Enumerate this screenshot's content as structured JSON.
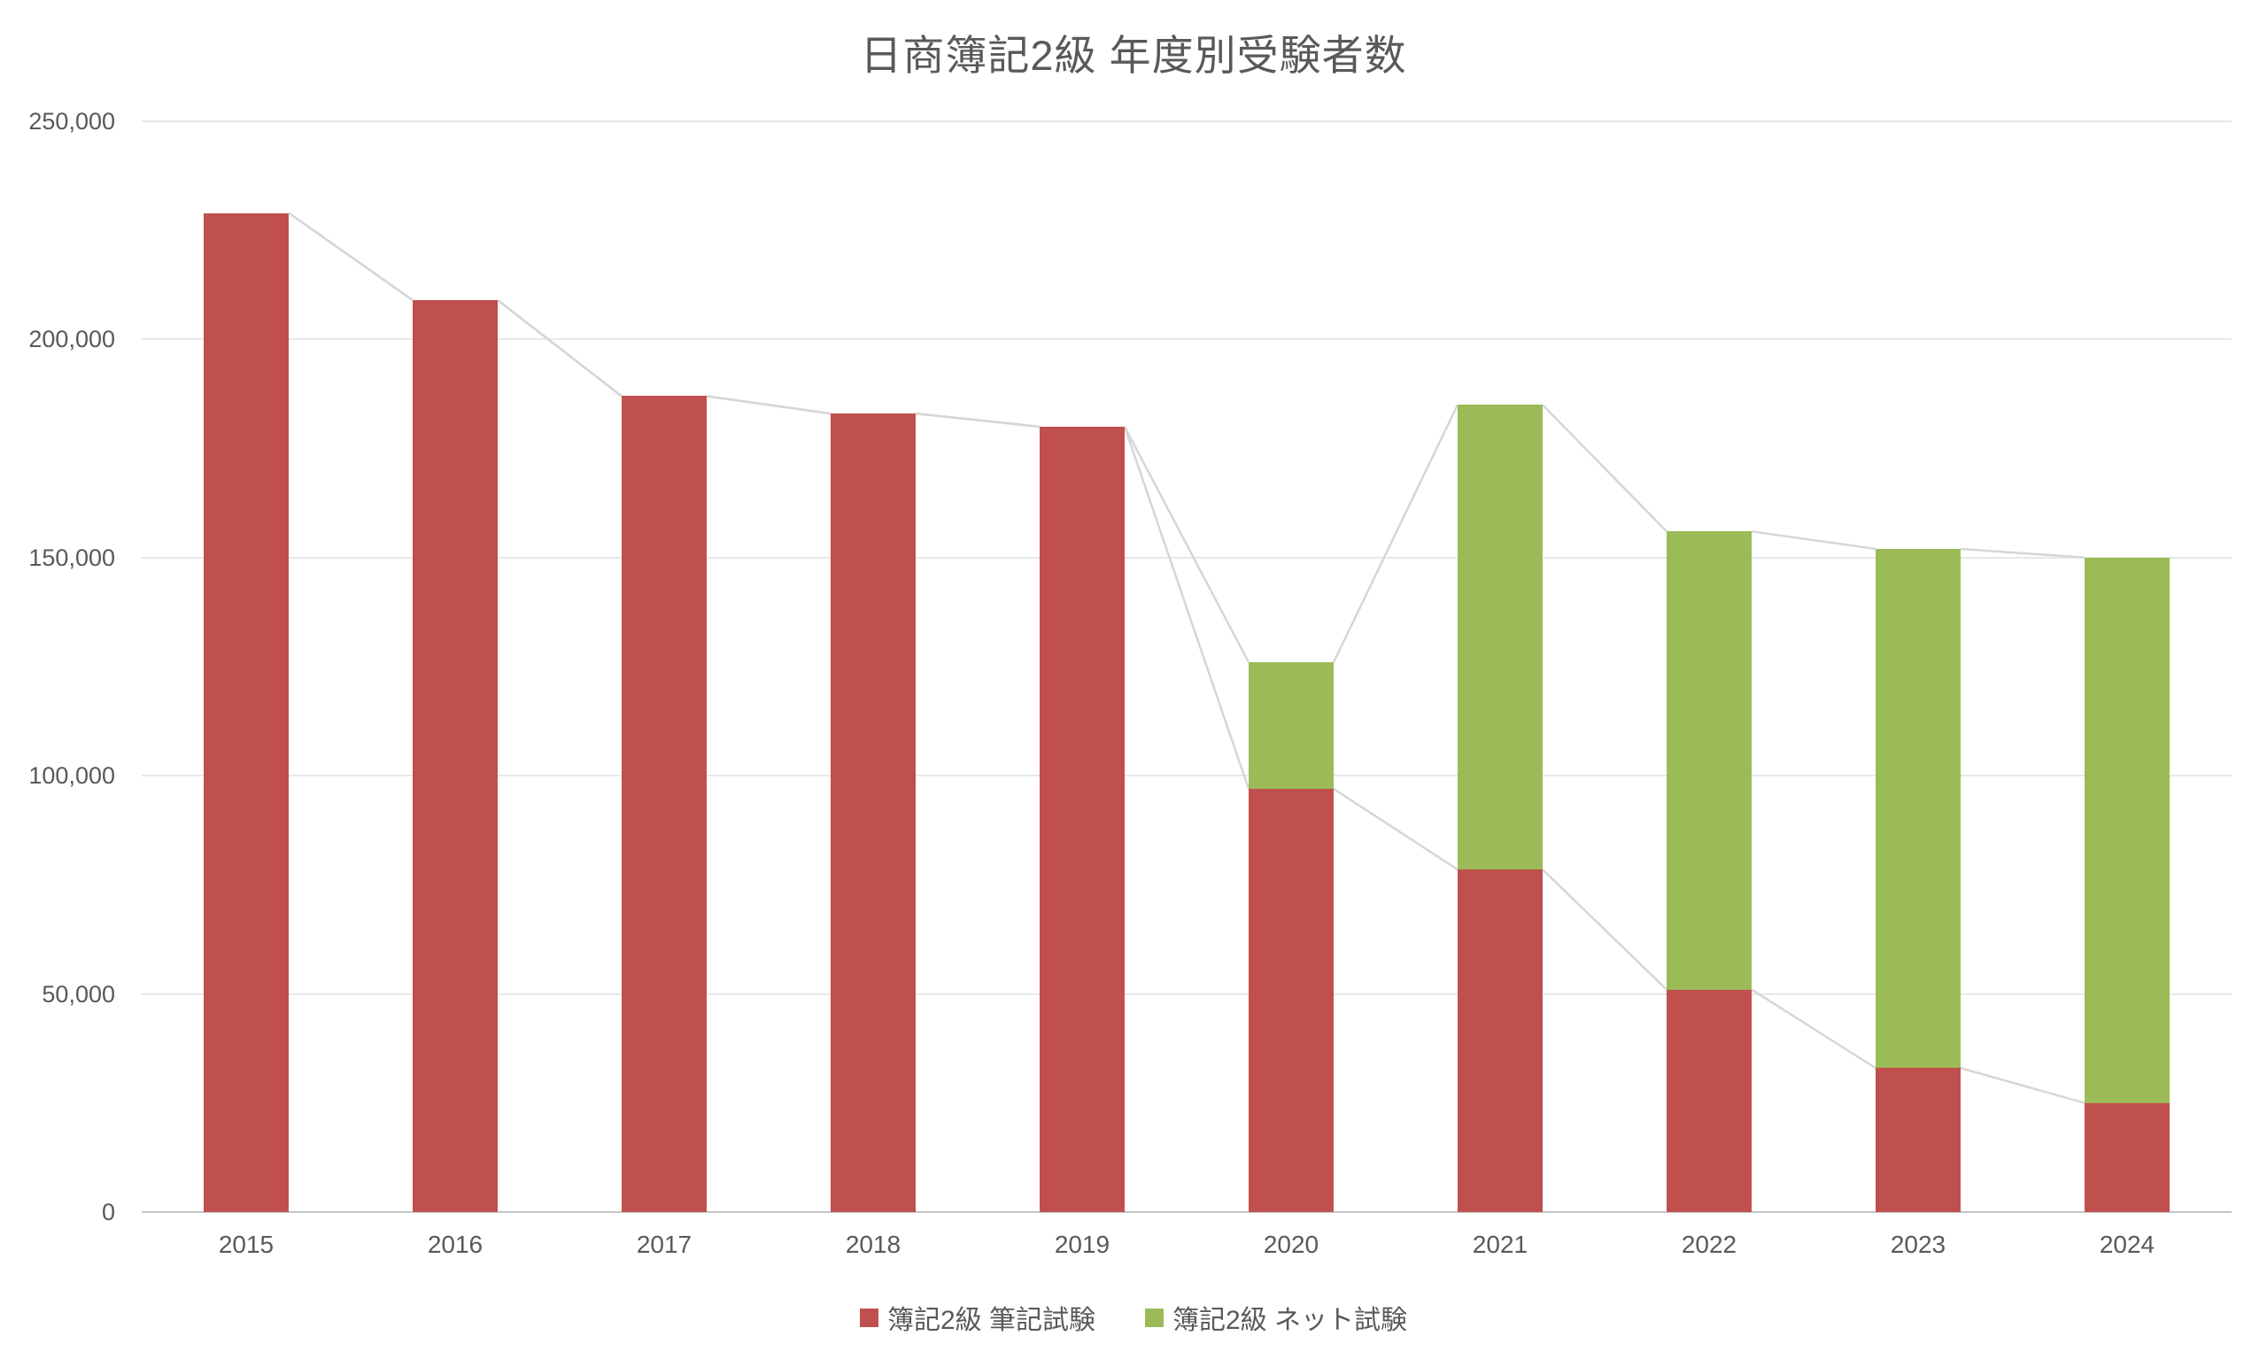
{
  "chart_data": {
    "type": "bar",
    "stacked": true,
    "title": "日商簿記2級 年度別受験者数",
    "categories": [
      "2015",
      "2016",
      "2017",
      "2018",
      "2019",
      "2020",
      "2021",
      "2022",
      "2023",
      "2024"
    ],
    "series": [
      {
        "name": "簿記2級 筆記試験",
        "color": "#C0504D",
        "values": [
          229000,
          209000,
          187000,
          183000,
          180000,
          97000,
          78500,
          51000,
          33000,
          25000
        ]
      },
      {
        "name": "簿記2級 ネット試験",
        "color": "#9BBB59",
        "values": [
          0,
          0,
          0,
          0,
          0,
          29000,
          106500,
          105000,
          119000,
          125000
        ]
      }
    ],
    "ylim": [
      0,
      250000
    ],
    "ytick_step": 50000,
    "ytick_labels": [
      "0",
      "50,000",
      "100,000",
      "150,000",
      "200,000",
      "250,000"
    ],
    "xlabel": "",
    "ylabel": "",
    "grid": true,
    "series_lines": true,
    "legend_position": "bottom",
    "colors": {
      "text": "#595959",
      "gridline": "#E8E8E8",
      "axis_line": "#C6C6C6",
      "series_line": "#D6D6D6",
      "background": "#FFFFFF"
    }
  }
}
